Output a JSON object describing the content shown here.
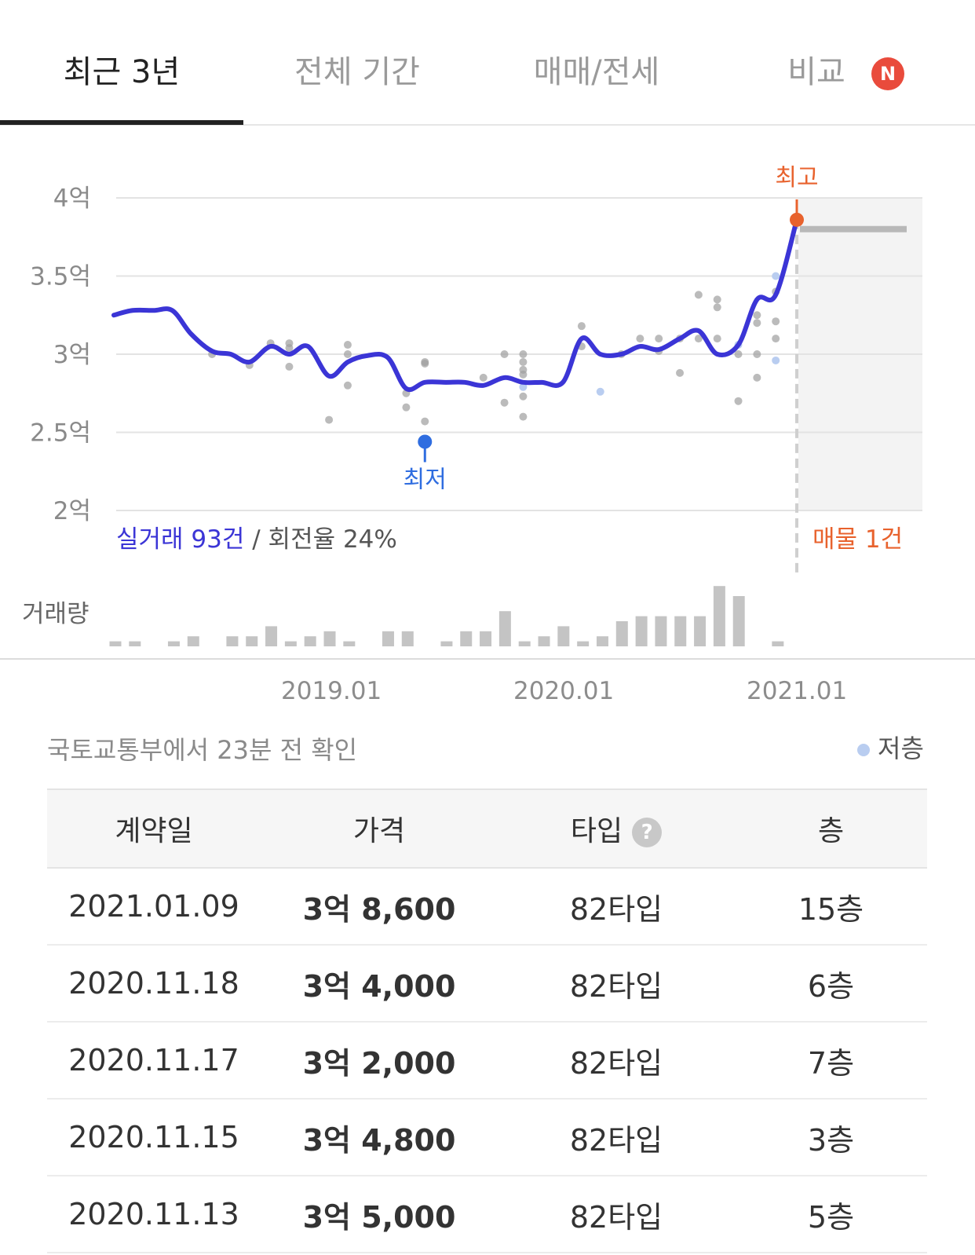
{
  "tabs": [
    {
      "label": "최근 3년",
      "active": true
    },
    {
      "label": "전체 기간",
      "active": false
    },
    {
      "label": "매매/전세",
      "active": false
    },
    {
      "label": "비교",
      "active": false
    }
  ],
  "new_badge": "N",
  "chart": {
    "summary_trades": "실거래 93건",
    "summary_turnover": " / 회전율 24%",
    "listing_label": "매물 1건",
    "max_label": "최고",
    "min_label": "최저",
    "volume_label": "거래량",
    "colors": {
      "line": "#3b35d6",
      "max": "#e8622d",
      "min": "#2f6de0",
      "dot": "#9e9e9e",
      "low_floor": "#b9cdf0"
    }
  },
  "chart_data": {
    "type": "line",
    "y_ticks": [
      "4억",
      "3.5억",
      "3억",
      "2.5억",
      "2억"
    ],
    "ylim": [
      2.0,
      4.0
    ],
    "x_ticks": [
      "2019.01",
      "2020.01",
      "2021.01"
    ],
    "series": [
      {
        "name": "실거래",
        "points": [
          [
            2018.0,
            3.25
          ],
          [
            2018.08,
            3.28
          ],
          [
            2018.17,
            3.28
          ],
          [
            2018.25,
            3.28
          ],
          [
            2018.33,
            3.13
          ],
          [
            2018.42,
            3.02
          ],
          [
            2018.5,
            3.0
          ],
          [
            2018.58,
            2.95
          ],
          [
            2018.67,
            3.05
          ],
          [
            2018.75,
            3.0
          ],
          [
            2018.83,
            3.05
          ],
          [
            2018.92,
            2.86
          ],
          [
            2019.0,
            2.95
          ],
          [
            2019.08,
            2.99
          ],
          [
            2019.17,
            2.98
          ],
          [
            2019.25,
            2.78
          ],
          [
            2019.33,
            2.82
          ],
          [
            2019.42,
            2.82
          ],
          [
            2019.5,
            2.82
          ],
          [
            2019.58,
            2.8
          ],
          [
            2019.67,
            2.85
          ],
          [
            2019.75,
            2.82
          ],
          [
            2019.83,
            2.82
          ],
          [
            2019.92,
            2.82
          ],
          [
            2020.0,
            3.1
          ],
          [
            2020.08,
            3.0
          ],
          [
            2020.17,
            3.0
          ],
          [
            2020.25,
            3.05
          ],
          [
            2020.33,
            3.03
          ],
          [
            2020.42,
            3.1
          ],
          [
            2020.5,
            3.15
          ],
          [
            2020.58,
            3.0
          ],
          [
            2020.67,
            3.06
          ],
          [
            2020.75,
            3.35
          ],
          [
            2020.83,
            3.38
          ],
          [
            2020.92,
            3.86
          ]
        ]
      }
    ],
    "max_point": [
      2020.92,
      3.86
    ],
    "min_point": [
      2019.33,
      2.44
    ],
    "listing_price": 3.8,
    "scatter": [
      [
        2018.42,
        3.0
      ],
      [
        2018.58,
        2.93
      ],
      [
        2018.67,
        3.07
      ],
      [
        2018.75,
        3.07
      ],
      [
        2018.75,
        3.04
      ],
      [
        2018.75,
        2.92
      ],
      [
        2018.92,
        2.58
      ],
      [
        2019.0,
        3.06
      ],
      [
        2019.0,
        3.0
      ],
      [
        2019.0,
        2.8
      ],
      [
        2019.25,
        2.75
      ],
      [
        2019.25,
        2.66
      ],
      [
        2019.33,
        2.94
      ],
      [
        2019.33,
        2.95
      ],
      [
        2019.33,
        2.57
      ],
      [
        2019.58,
        2.85
      ],
      [
        2019.67,
        3.0
      ],
      [
        2019.67,
        2.69
      ],
      [
        2019.75,
        3.0
      ],
      [
        2019.75,
        2.95
      ],
      [
        2019.75,
        2.9
      ],
      [
        2019.75,
        2.87
      ],
      [
        2019.75,
        2.73
      ],
      [
        2019.75,
        2.6
      ],
      [
        2020.0,
        3.18
      ],
      [
        2020.0,
        3.05
      ],
      [
        2020.17,
        3.0
      ],
      [
        2020.25,
        3.1
      ],
      [
        2020.33,
        3.1
      ],
      [
        2020.33,
        3.02
      ],
      [
        2020.42,
        3.1
      ],
      [
        2020.42,
        2.88
      ],
      [
        2020.5,
        3.38
      ],
      [
        2020.5,
        3.1
      ],
      [
        2020.58,
        3.35
      ],
      [
        2020.58,
        3.3
      ],
      [
        2020.58,
        3.1
      ],
      [
        2020.67,
        3.0
      ],
      [
        2020.67,
        2.7
      ],
      [
        2020.75,
        3.25
      ],
      [
        2020.75,
        3.2
      ],
      [
        2020.75,
        3.0
      ],
      [
        2020.75,
        2.85
      ],
      [
        2020.83,
        3.4
      ],
      [
        2020.83,
        3.21
      ],
      [
        2020.83,
        3.1
      ]
    ],
    "scatter_low_floor": [
      [
        2019.75,
        2.79
      ],
      [
        2020.08,
        2.76
      ],
      [
        2020.67,
        3.06
      ],
      [
        2020.83,
        3.5
      ],
      [
        2020.83,
        2.96
      ]
    ],
    "volume": [
      1,
      1,
      0,
      1,
      2,
      0,
      2,
      2,
      4,
      1,
      2,
      3,
      1,
      0,
      3,
      3,
      0,
      1,
      3,
      3,
      7,
      1,
      2,
      4,
      1,
      2,
      5,
      6,
      6,
      6,
      6,
      12,
      10,
      0,
      1
    ],
    "volume_start": 2018.0,
    "volume_step": 0.0833
  },
  "footer": {
    "source": "국토교통부에서 23분 전 확인",
    "legend_low_floor": "저층"
  },
  "table": {
    "headers": {
      "date": "계약일",
      "price": "가격",
      "type": "타입",
      "help": "?",
      "floor": "층"
    },
    "rows": [
      {
        "date": "2021.01.09",
        "price": "3억 8,600",
        "type": "82타입",
        "floor": "15층"
      },
      {
        "date": "2020.11.18",
        "price": "3억 4,000",
        "type": "82타입",
        "floor": "6층"
      },
      {
        "date": "2020.11.17",
        "price": "3억 2,000",
        "type": "82타입",
        "floor": "7층"
      },
      {
        "date": "2020.11.15",
        "price": "3억 4,800",
        "type": "82타입",
        "floor": "3층"
      },
      {
        "date": "2020.11.13",
        "price": "3억 5,000",
        "type": "82타입",
        "floor": "5층"
      }
    ]
  }
}
